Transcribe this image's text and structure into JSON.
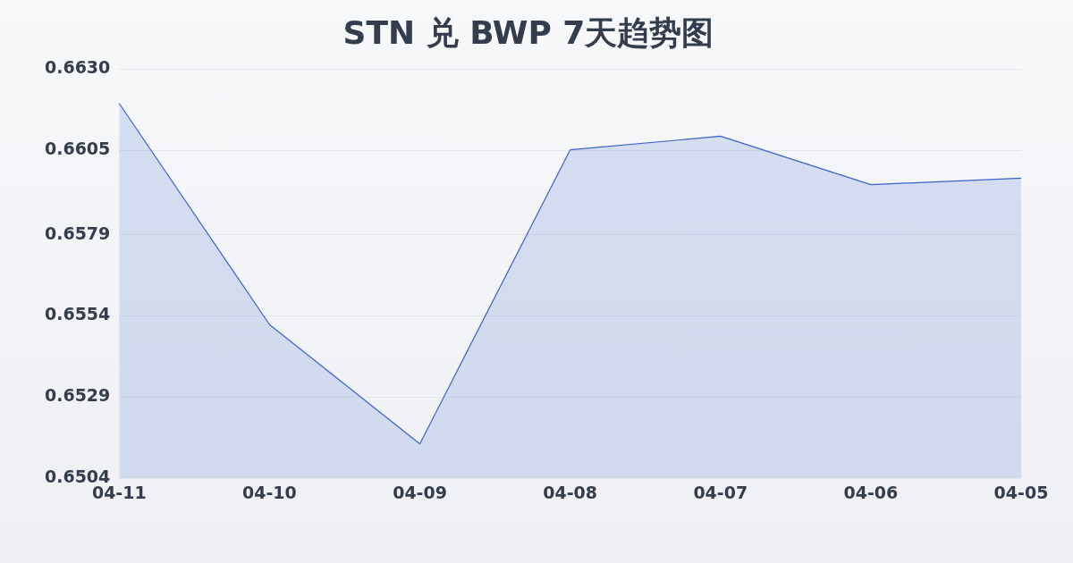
{
  "chart_data": {
    "type": "area",
    "title": "STN 兑 BWP 7天趋势图",
    "categories": [
      "04-11",
      "04-10",
      "04-09",
      "04-08",
      "04-07",
      "04-06",
      "04-05"
    ],
    "series": [
      {
        "color": "#3a62d0",
        "values": [
          0.66194,
          0.65513,
          0.65146,
          0.66051,
          0.66093,
          0.65944,
          0.65964
        ]
      }
    ],
    "ylim": [
      0.6504,
      0.663
    ],
    "yticks": [
      0.6504,
      0.6529,
      0.6554,
      0.6579,
      0.6605,
      {
        "value": 0.663,
        "label": "0.6630"
      }
    ],
    "grid": "y",
    "legend": false,
    "marker": "none",
    "line_style": "solid"
  }
}
